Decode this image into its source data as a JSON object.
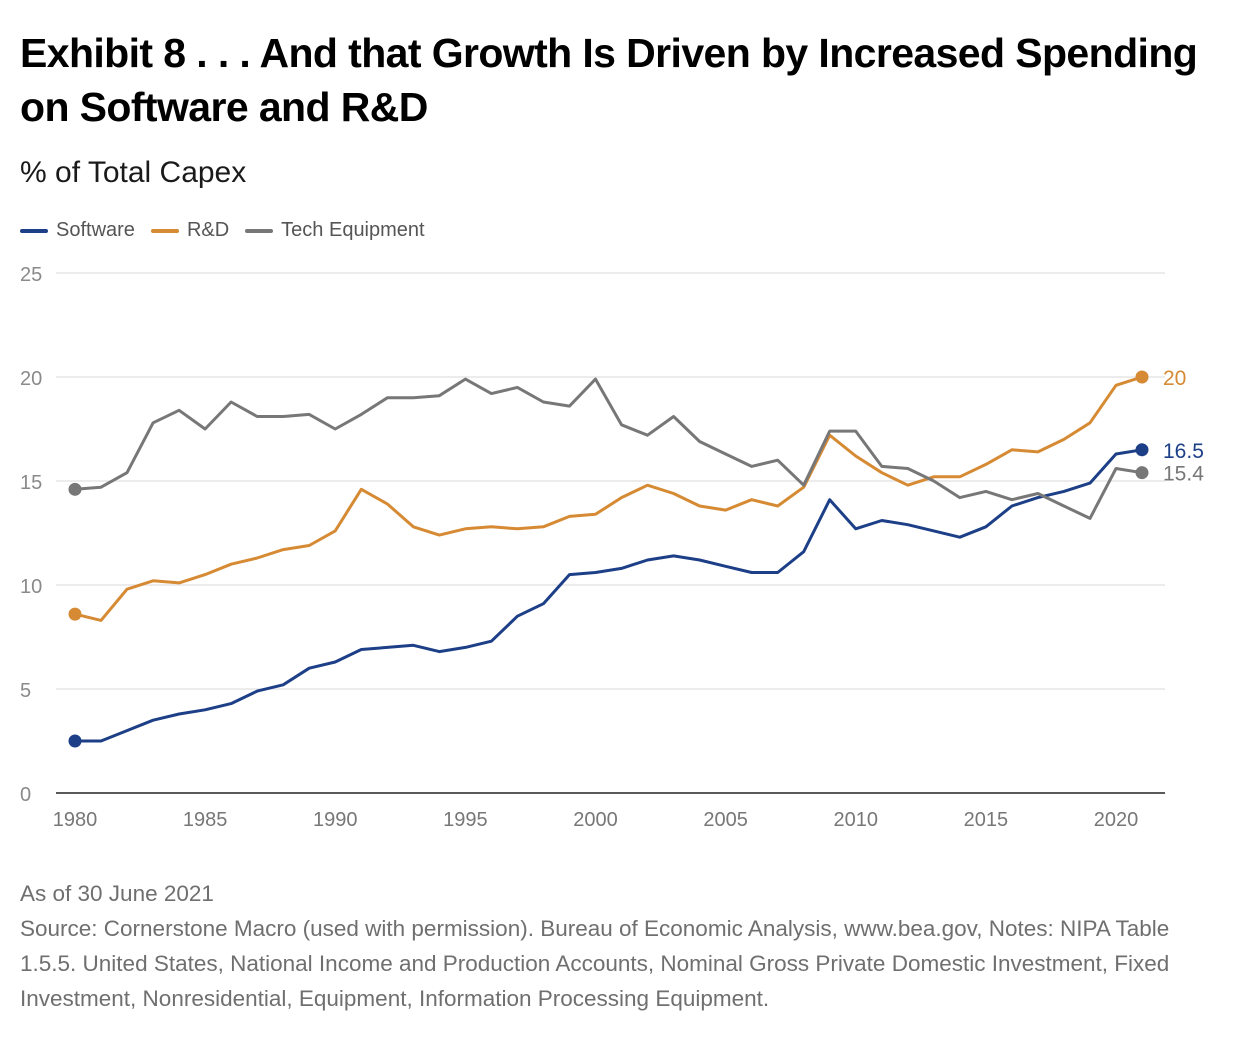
{
  "title": "Exhibit 8 . . . And that Growth Is Driven by Increased Spending on Software and R&D",
  "subtitle": "% of Total Capex",
  "as_of": "As of 30 June 2021",
  "source": "Source: Cornerstone Macro (used with permission). Bureau of Economic Analysis, www.bea.gov, Notes: NIPA Table 1.5.5. United States, National Income and Production Accounts, Nominal Gross Private Domestic Investment, Fixed Investment, Nonresidential, Equipment, Information Processing Equipment.",
  "chart_data": {
    "type": "line",
    "title": "Exhibit 8 . . . And that Growth Is Driven by Increased Spending on Software and R&D",
    "ylabel": "% of Total Capex",
    "xlim": [
      1980,
      2021
    ],
    "ylim": [
      0,
      25
    ],
    "y_ticks": [
      0,
      5,
      10,
      15,
      20,
      25
    ],
    "x_ticks": [
      1980,
      1985,
      1990,
      1995,
      2000,
      2005,
      2010,
      2015,
      2020
    ],
    "grid": true,
    "legend_position": "top-left",
    "x": [
      1980,
      1981,
      1982,
      1983,
      1984,
      1985,
      1986,
      1987,
      1988,
      1989,
      1990,
      1991,
      1992,
      1993,
      1994,
      1995,
      1996,
      1997,
      1998,
      1999,
      2000,
      2001,
      2002,
      2003,
      2004,
      2005,
      2006,
      2007,
      2008,
      2009,
      2010,
      2011,
      2012,
      2013,
      2014,
      2015,
      2016,
      2017,
      2018,
      2019,
      2020,
      2021
    ],
    "series": [
      {
        "name": "Software",
        "color": "#1d3f87",
        "end_label": "16.5",
        "values": [
          2.5,
          2.5,
          3.0,
          3.5,
          3.8,
          4.0,
          4.3,
          4.9,
          5.2,
          6.0,
          6.3,
          6.9,
          7.0,
          7.1,
          6.8,
          7.0,
          7.3,
          8.5,
          9.1,
          10.5,
          10.6,
          10.8,
          11.2,
          11.4,
          11.2,
          10.9,
          10.6,
          10.6,
          11.6,
          14.1,
          12.7,
          13.1,
          12.9,
          12.6,
          12.3,
          12.8,
          13.8,
          14.2,
          14.5,
          14.9,
          16.3,
          16.5
        ]
      },
      {
        "name": "R&D",
        "color": "#d68a33",
        "end_label": "20",
        "values": [
          8.6,
          8.3,
          9.8,
          10.2,
          10.1,
          10.5,
          11.0,
          11.3,
          11.7,
          11.9,
          12.6,
          14.6,
          13.9,
          12.8,
          12.4,
          12.7,
          12.8,
          12.7,
          12.8,
          13.3,
          13.4,
          14.2,
          14.8,
          14.4,
          13.8,
          13.6,
          14.1,
          13.8,
          14.7,
          17.2,
          16.2,
          15.4,
          14.8,
          15.2,
          15.2,
          15.8,
          16.5,
          16.4,
          17.0,
          17.8,
          19.6,
          20.0
        ]
      },
      {
        "name": "Tech Equipment",
        "color": "#777777",
        "end_label": "15.4",
        "values": [
          14.6,
          14.7,
          15.4,
          17.8,
          18.4,
          17.5,
          18.8,
          18.1,
          18.1,
          18.2,
          17.5,
          18.2,
          19.0,
          19.0,
          19.1,
          19.9,
          19.2,
          19.5,
          18.8,
          18.6,
          19.9,
          17.7,
          17.2,
          18.1,
          16.9,
          16.3,
          15.7,
          16.0,
          14.8,
          17.4,
          17.4,
          15.7,
          15.6,
          15.0,
          14.2,
          14.5,
          14.1,
          14.4,
          13.8,
          13.2,
          15.6,
          15.4
        ]
      }
    ]
  }
}
